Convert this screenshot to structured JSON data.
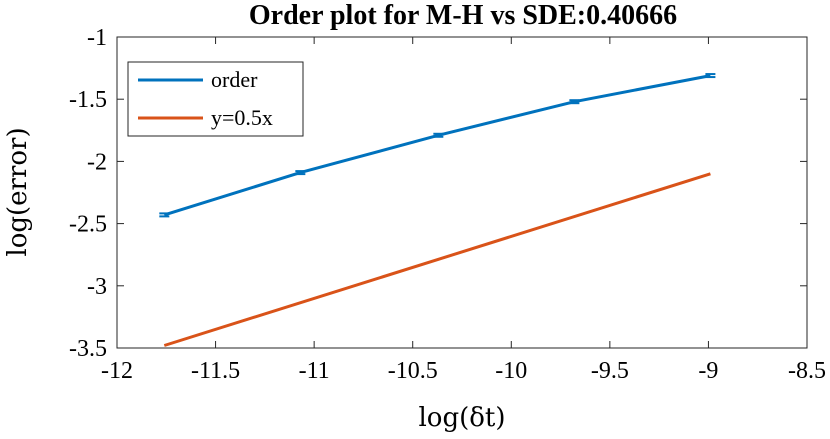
{
  "chart_data": {
    "type": "line",
    "title": "Order plot for M-H vs SDE:0.40666",
    "xlabel": "log(δt)",
    "ylabel": "log(error)",
    "xlim": [
      -12,
      -8.5
    ],
    "ylim": [
      -3.5,
      -1
    ],
    "xticks": [
      -12,
      -11.5,
      -11,
      -10.5,
      -10,
      -9.5,
      -9,
      -8.5
    ],
    "xtick_labels": [
      "-12",
      "-11.5",
      "-11",
      "-10.5",
      "-10",
      "-9.5",
      "-9",
      "-8.5"
    ],
    "yticks": [
      -1,
      -1.5,
      -2,
      -2.5,
      -3,
      -3.5
    ],
    "ytick_labels": [
      "-1",
      "-1.5",
      "-2",
      "-2.5",
      "-3",
      "-3.5"
    ],
    "grid": false,
    "legend_position": "top-left",
    "series": [
      {
        "name": "order",
        "color": "#0072BD",
        "error_bars": true,
        "x": [
          -11.76,
          -11.07,
          -10.37,
          -9.68,
          -8.99
        ],
        "y": [
          -2.43,
          -2.09,
          -1.79,
          -1.52,
          -1.31
        ]
      },
      {
        "name": "y=0.5x",
        "color": "#D95319",
        "error_bars": false,
        "x": [
          -11.76,
          -8.99
        ],
        "y": [
          -3.48,
          -2.1
        ]
      }
    ]
  }
}
